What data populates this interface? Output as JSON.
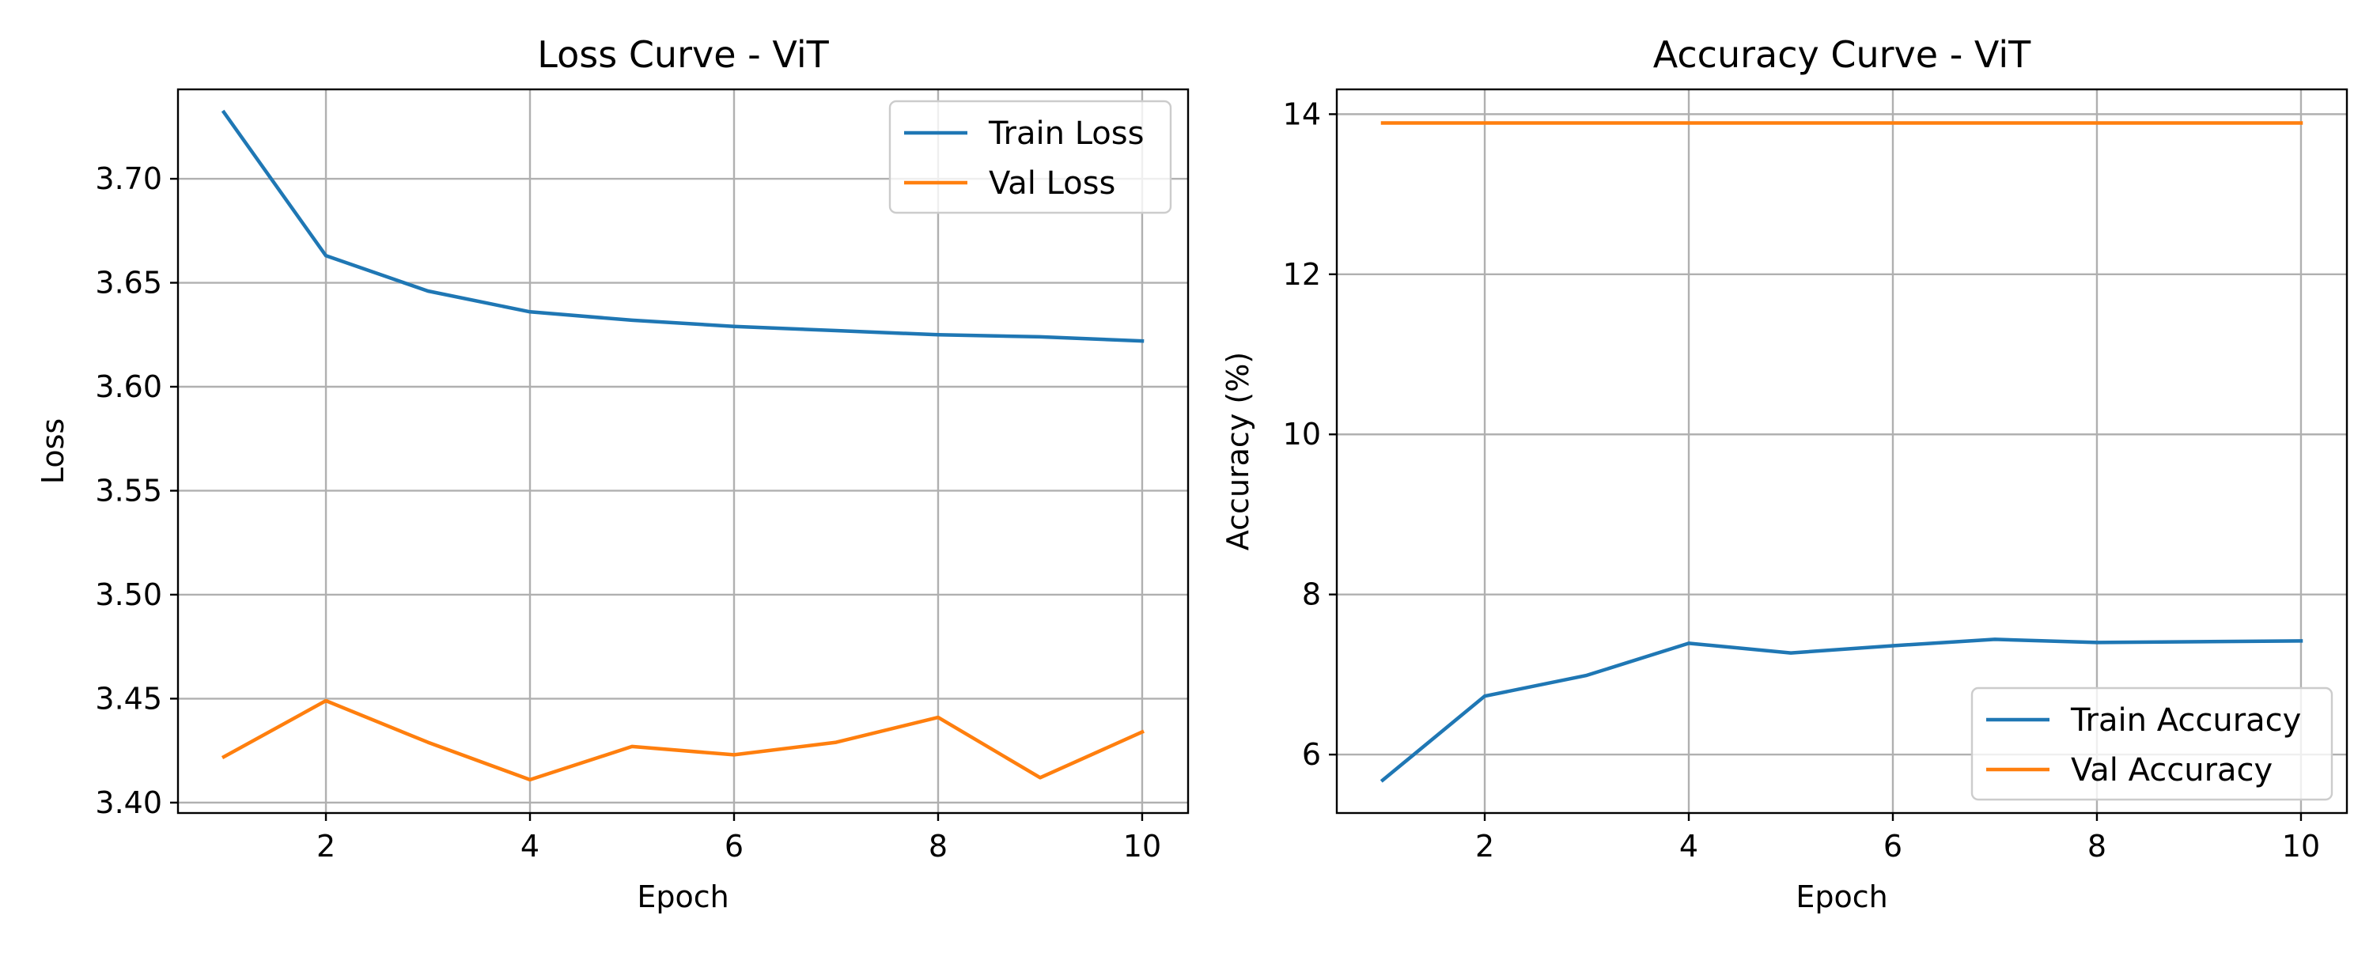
{
  "chart_data": [
    {
      "type": "line",
      "title": "Loss Curve - ViT",
      "xlabel": "Epoch",
      "ylabel": "Loss",
      "x": [
        1,
        2,
        3,
        4,
        5,
        6,
        7,
        8,
        9,
        10
      ],
      "xlim": [
        0.55,
        10.45
      ],
      "ylim": [
        3.395,
        3.743
      ],
      "xticks": [
        2,
        4,
        6,
        8,
        10
      ],
      "xtick_labels": [
        "2",
        "4",
        "6",
        "8",
        "10"
      ],
      "yticks": [
        3.4,
        3.45,
        3.5,
        3.55,
        3.6,
        3.65,
        3.7
      ],
      "ytick_labels": [
        "3.40",
        "3.45",
        "3.50",
        "3.55",
        "3.60",
        "3.65",
        "3.70"
      ],
      "grid": true,
      "legend_position": "upper right",
      "series": [
        {
          "name": "Train Loss",
          "color": "#1f77b4",
          "values": [
            3.732,
            3.663,
            3.646,
            3.636,
            3.632,
            3.629,
            3.627,
            3.625,
            3.624,
            3.622
          ]
        },
        {
          "name": "Val Loss",
          "color": "#ff7f0e",
          "values": [
            3.422,
            3.449,
            3.429,
            3.411,
            3.427,
            3.423,
            3.429,
            3.441,
            3.412,
            3.434
          ]
        }
      ]
    },
    {
      "type": "line",
      "title": "Accuracy Curve - ViT",
      "xlabel": "Epoch",
      "ylabel": "Accuracy (%)",
      "x": [
        1,
        2,
        3,
        4,
        5,
        6,
        7,
        8,
        9,
        10
      ],
      "xlim": [
        0.55,
        10.45
      ],
      "ylim": [
        5.27,
        14.31
      ],
      "xticks": [
        2,
        4,
        6,
        8,
        10
      ],
      "xtick_labels": [
        "2",
        "4",
        "6",
        "8",
        "10"
      ],
      "yticks": [
        6,
        8,
        10,
        12,
        14
      ],
      "ytick_labels": [
        "6",
        "8",
        "10",
        "12",
        "14"
      ],
      "grid": true,
      "legend_position": "lower right",
      "series": [
        {
          "name": "Train Accuracy",
          "color": "#1f77b4",
          "values": [
            5.68,
            6.73,
            6.99,
            7.39,
            7.27,
            7.36,
            7.44,
            7.4,
            7.41,
            7.42
          ]
        },
        {
          "name": "Val Accuracy",
          "color": "#ff7f0e",
          "values": [
            13.89,
            13.89,
            13.89,
            13.89,
            13.89,
            13.89,
            13.89,
            13.89,
            13.89,
            13.89
          ]
        }
      ]
    }
  ]
}
